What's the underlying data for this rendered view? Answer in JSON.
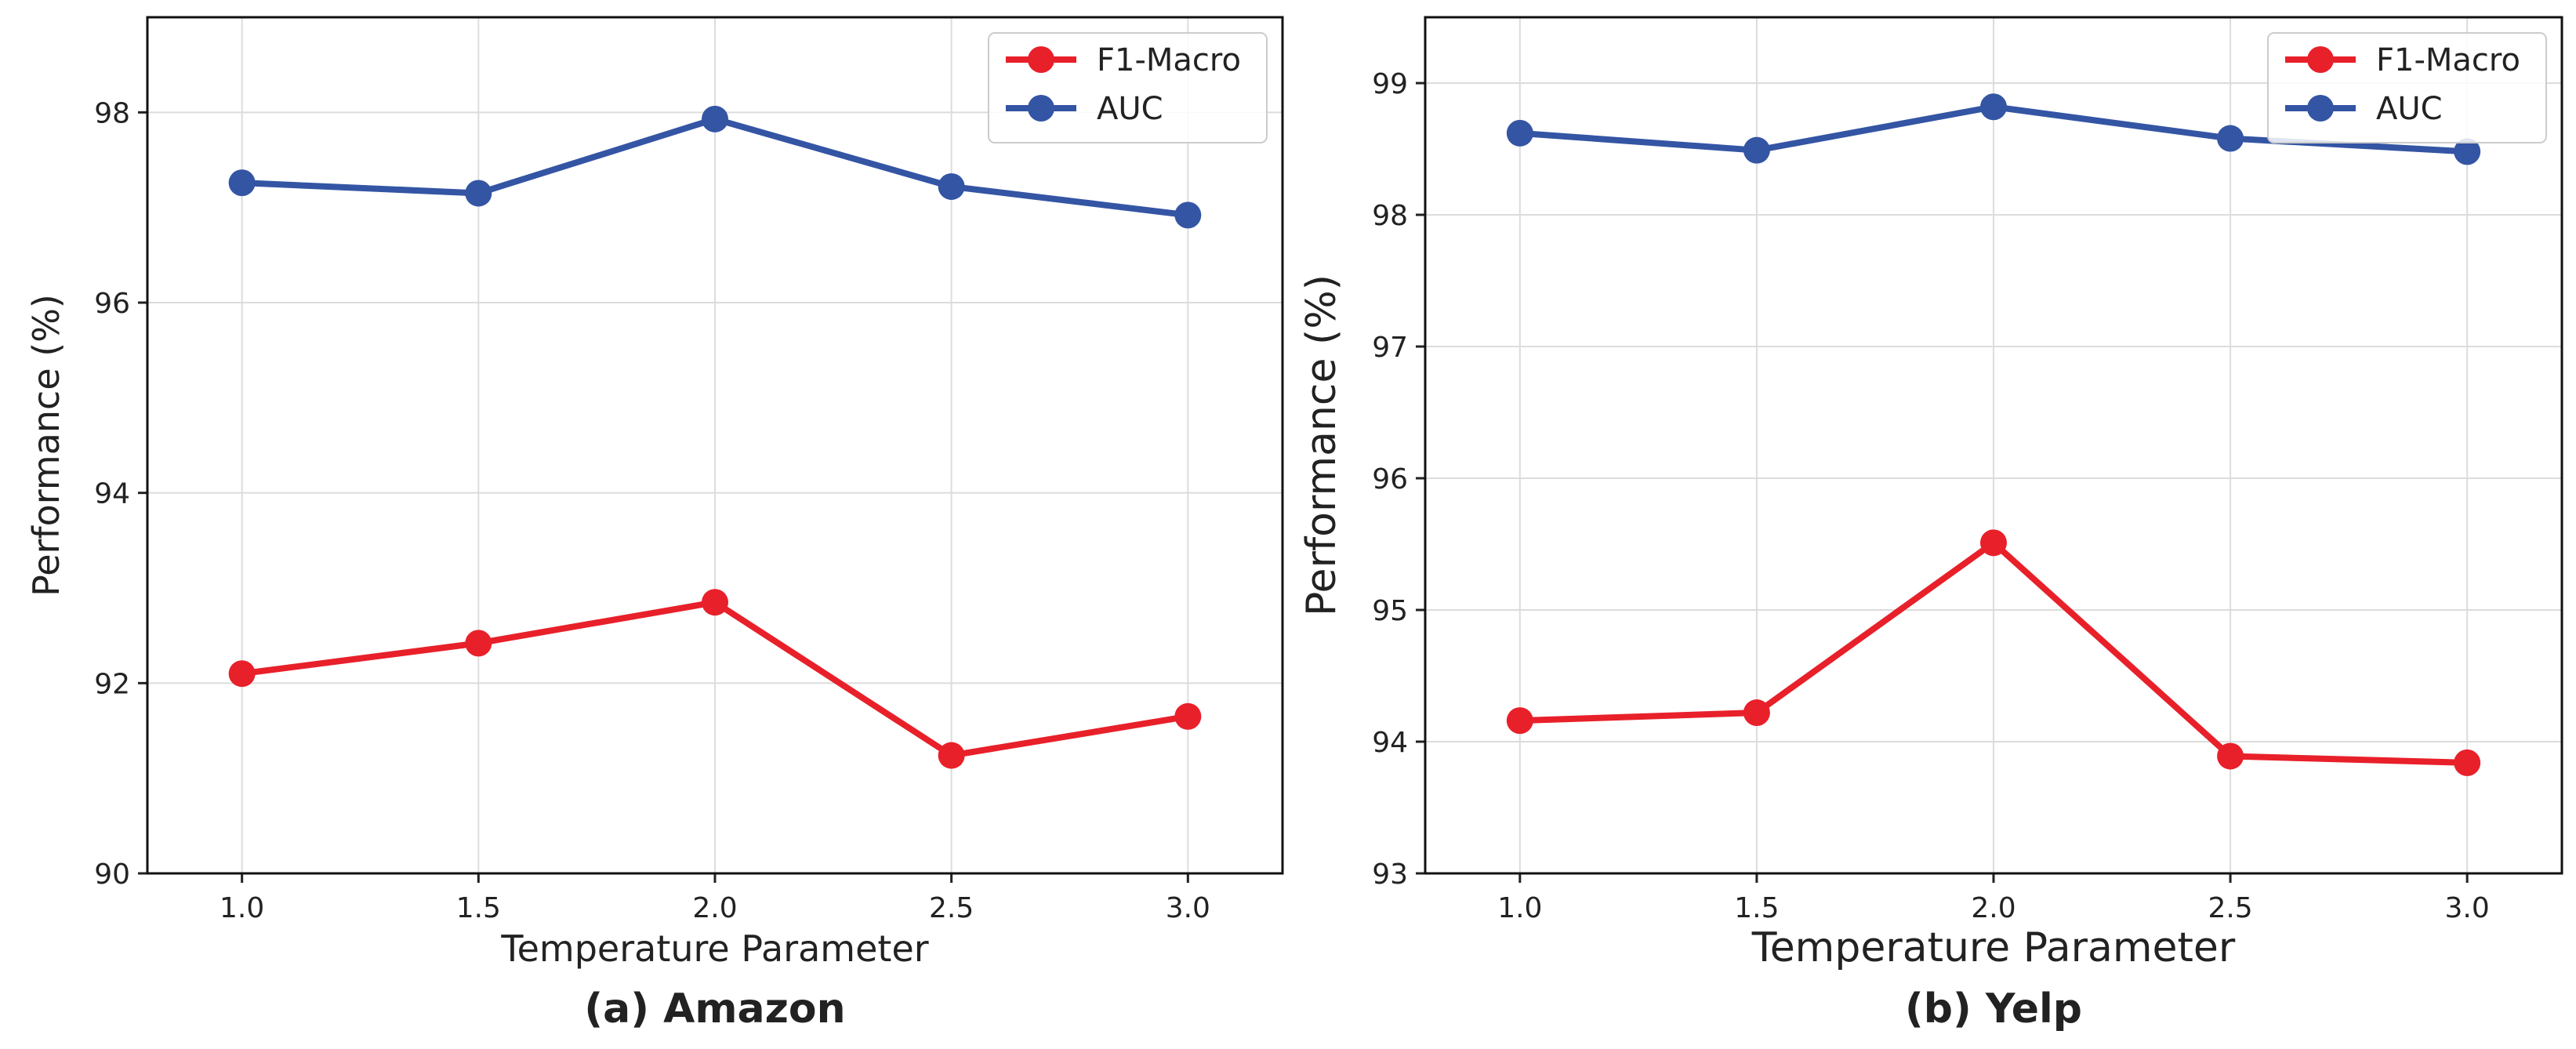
{
  "chart_data": [
    {
      "type": "line",
      "caption": "(a) Amazon",
      "xlabel": "Temperature Parameter",
      "ylabel": "Performance (%)",
      "x": [
        1.0,
        1.5,
        2.0,
        2.5,
        3.0
      ],
      "x_tick_labels": [
        "1.0",
        "1.5",
        "2.0",
        "2.5",
        "3.0"
      ],
      "xlim": [
        0.8,
        3.2
      ],
      "ylim": [
        90,
        99
      ],
      "y_ticks": [
        90,
        92,
        94,
        96,
        98
      ],
      "y_tick_labels": [
        "90",
        "92",
        "94",
        "96",
        "98"
      ],
      "grid": true,
      "legend_position": "top-right",
      "series": [
        {
          "name": "F1-Macro",
          "color": "#e8202a",
          "values": [
            92.1,
            92.42,
            92.85,
            91.24,
            91.65
          ]
        },
        {
          "name": "AUC",
          "color": "#3455a4",
          "values": [
            97.26,
            97.15,
            97.93,
            97.22,
            96.92
          ]
        }
      ]
    },
    {
      "type": "line",
      "caption": "(b) Yelp",
      "xlabel": "Temperature Parameter",
      "ylabel": "Performance (%)",
      "x": [
        1.0,
        1.5,
        2.0,
        2.5,
        3.0
      ],
      "x_tick_labels": [
        "1.0",
        "1.5",
        "2.0",
        "2.5",
        "3.0"
      ],
      "xlim": [
        0.8,
        3.2
      ],
      "ylim": [
        93,
        99.5
      ],
      "y_ticks": [
        93,
        94,
        95,
        96,
        97,
        98,
        99
      ],
      "y_tick_labels": [
        "93",
        "94",
        "95",
        "96",
        "97",
        "98",
        "99"
      ],
      "grid": true,
      "legend_position": "top-right",
      "series": [
        {
          "name": "F1-Macro",
          "color": "#e8202a",
          "values": [
            94.16,
            94.22,
            95.51,
            93.89,
            93.84
          ]
        },
        {
          "name": "AUC",
          "color": "#3455a4",
          "values": [
            98.62,
            98.49,
            98.82,
            98.58,
            98.48
          ]
        }
      ]
    }
  ]
}
